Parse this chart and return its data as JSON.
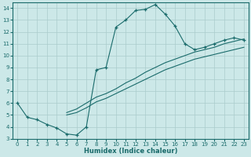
{
  "xlabel": "Humidex (Indice chaleur)",
  "xlim": [
    -0.5,
    23.5
  ],
  "ylim": [
    3,
    14.5
  ],
  "xticks": [
    0,
    1,
    2,
    3,
    4,
    5,
    6,
    7,
    8,
    9,
    10,
    11,
    12,
    13,
    14,
    15,
    16,
    17,
    18,
    19,
    20,
    21,
    22,
    23
  ],
  "yticks": [
    3,
    4,
    5,
    6,
    7,
    8,
    9,
    10,
    11,
    12,
    13,
    14
  ],
  "bg_color": "#cce8e8",
  "line_color": "#1a6b6b",
  "grid_color": "#aacccc",
  "curve1_x": [
    0,
    1,
    2,
    3,
    4,
    5,
    6,
    7,
    8,
    9,
    10,
    11,
    12,
    13,
    14,
    15,
    16,
    17,
    18,
    19,
    20,
    21,
    22,
    23
  ],
  "curve1_y": [
    6.0,
    4.8,
    4.6,
    4.2,
    3.9,
    3.4,
    3.3,
    4.0,
    8.8,
    9.0,
    12.4,
    13.0,
    13.8,
    13.9,
    14.3,
    13.5,
    12.5,
    11.0,
    10.5,
    10.7,
    11.0,
    11.3,
    11.5,
    11.3
  ],
  "curve2_x": [
    5,
    6,
    7,
    8,
    9,
    10,
    11,
    12,
    13,
    14,
    15,
    16,
    17,
    18,
    19,
    20,
    21,
    22,
    23
  ],
  "curve2_y": [
    5.2,
    5.5,
    6.0,
    6.5,
    6.8,
    7.2,
    7.7,
    8.1,
    8.6,
    9.0,
    9.4,
    9.7,
    10.0,
    10.3,
    10.5,
    10.7,
    11.0,
    11.2,
    11.4
  ],
  "curve3_x": [
    5,
    6,
    7,
    8,
    9,
    10,
    11,
    12,
    13,
    14,
    15,
    16,
    17,
    18,
    19,
    20,
    21,
    22,
    23
  ],
  "curve3_y": [
    5.0,
    5.2,
    5.6,
    6.1,
    6.4,
    6.8,
    7.2,
    7.6,
    8.0,
    8.4,
    8.8,
    9.1,
    9.4,
    9.7,
    9.9,
    10.1,
    10.3,
    10.5,
    10.7
  ]
}
